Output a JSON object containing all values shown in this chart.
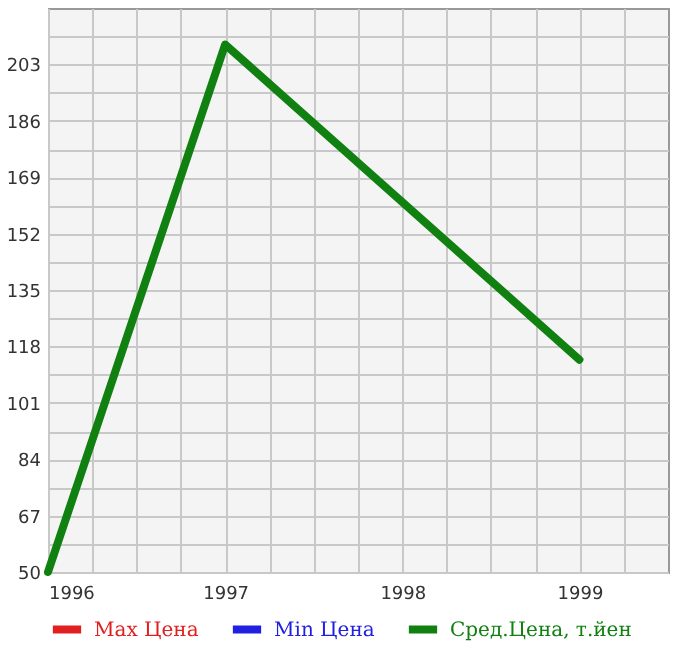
{
  "chart_data": {
    "type": "line",
    "x": [
      1996,
      1997,
      1999
    ],
    "series": [
      {
        "name": "Max Цена",
        "color": "#e02020",
        "values": [
          null,
          null,
          null
        ]
      },
      {
        "name": "Min Цена",
        "color": "#2020e0",
        "values": [
          null,
          null,
          null
        ]
      },
      {
        "name": "Сред.Цена, т.йен",
        "color": "#108010",
        "values": [
          50,
          209,
          114
        ]
      }
    ],
    "xlim": [
      1996,
      1999.5
    ],
    "xticks": [
      1996,
      {
        "value": 1996.25,
        "label": null
      },
      {
        "value": 1996.5,
        "label": null
      },
      {
        "value": 1996.75,
        "label": null
      },
      1997,
      {
        "value": 1997.25,
        "label": null
      },
      {
        "value": 1997.5,
        "label": null
      },
      {
        "value": 1997.75,
        "label": null
      },
      1998,
      {
        "value": 1998.25,
        "label": null
      },
      {
        "value": 1998.5,
        "label": null
      },
      {
        "value": 1998.75,
        "label": null
      },
      1999,
      {
        "value": 1999.25,
        "label": null
      }
    ],
    "ylim": [
      50,
      220
    ],
    "yticks": [
      50,
      {
        "value": 58.5,
        "label": null
      },
      67,
      {
        "value": 75.5,
        "label": null
      },
      84,
      {
        "value": 92.5,
        "label": null
      },
      101,
      {
        "value": 109.5,
        "label": null
      },
      118,
      {
        "value": 126.5,
        "label": null
      },
      135,
      {
        "value": 143.5,
        "label": null
      },
      152,
      {
        "value": 160.5,
        "label": null
      },
      169,
      {
        "value": 177.5,
        "label": null
      },
      186,
      {
        "value": 194.5,
        "label": null
      },
      203,
      {
        "value": 211.5,
        "label": null
      }
    ],
    "grid": true,
    "legend": "bottom",
    "line_style": "solid",
    "marker": "none"
  }
}
